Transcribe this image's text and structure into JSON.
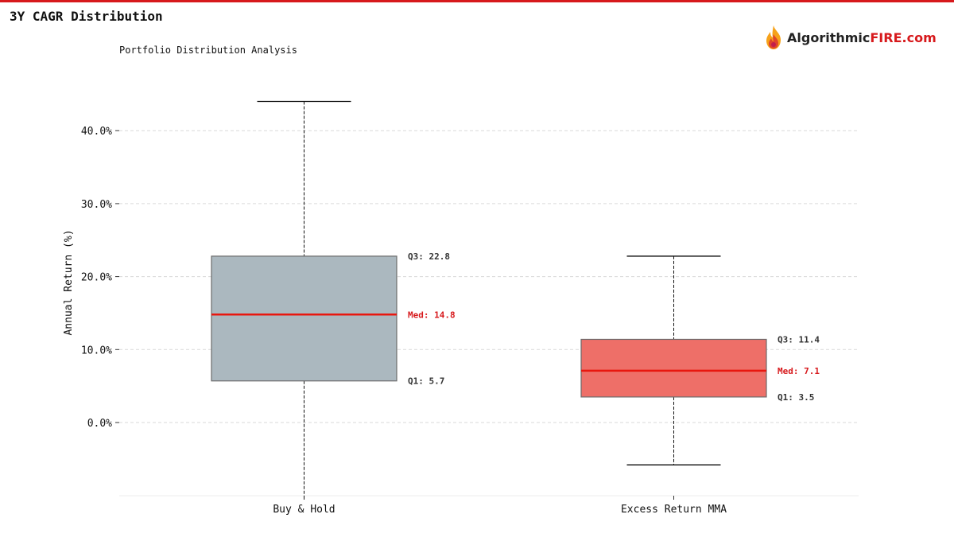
{
  "page": {
    "title": "3Y CAGR Distribution"
  },
  "logo": {
    "text_dark": "Algorithmic",
    "text_red": "FIRE.com",
    "icon": "flame-icon"
  },
  "colors": {
    "accent": "#d7191c",
    "box_buy_hold": "#abb8bf",
    "box_excess": "#ee6f68",
    "median_line": "#e8170f"
  },
  "chart_data": {
    "type": "boxplot",
    "subtitle": "Portfolio Distribution Analysis",
    "xlabel": "",
    "ylabel": "Annual Return (%)",
    "ylim": [
      -10,
      54
    ],
    "yticks": [
      0,
      10,
      20,
      30,
      40
    ],
    "ytick_labels": [
      "0.0%",
      "10.0%",
      "20.0%",
      "30.0%",
      "40.0%"
    ],
    "grid": true,
    "categories": [
      "Buy & Hold",
      "Excess Return MMA"
    ],
    "boxes": [
      {
        "category": "Buy & Hold",
        "whisker_low": -10.5,
        "q1": 5.7,
        "median": 14.8,
        "q3": 22.8,
        "whisker_high": 44.0,
        "q1_label": "Q1: 5.7",
        "median_label": "Med: 14.8",
        "q3_label": "Q3: 22.8",
        "color": "#abb8bf"
      },
      {
        "category": "Excess Return MMA",
        "whisker_low": -5.8,
        "q1": 3.5,
        "median": 7.1,
        "q3": 11.4,
        "whisker_high": 22.8,
        "q1_label": "Q1: 3.5",
        "median_label": "Med: 7.1",
        "q3_label": "Q3: 11.4",
        "color": "#ee6f68"
      }
    ]
  }
}
